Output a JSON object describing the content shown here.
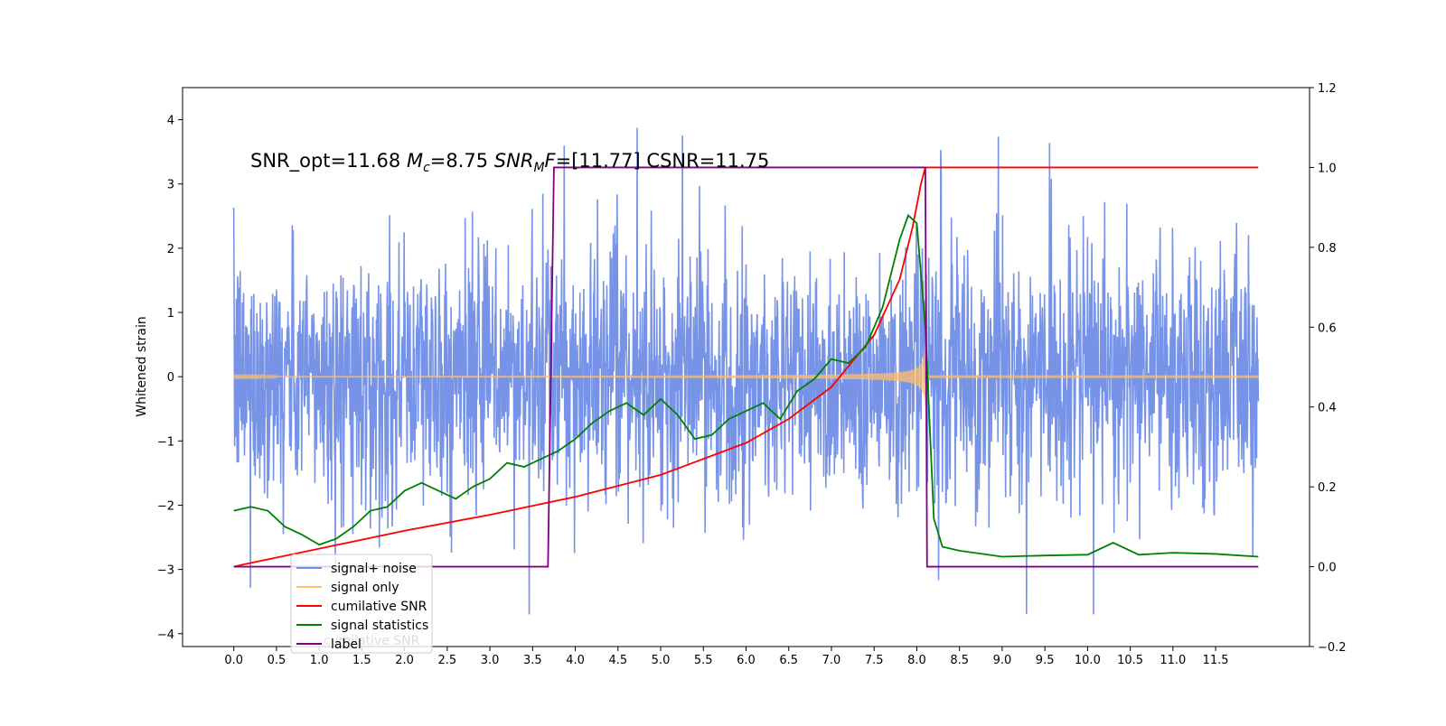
{
  "chart_data": {
    "type": "line",
    "title": "",
    "annotation": {
      "text_a": "SNR_opt=11.68 ",
      "mc_symbol": "M",
      "mc_sub": "c",
      "text_b": "=8.75    ",
      "snr_symbol": "SNR",
      "snr_sub": "M",
      "snr_tail": "F",
      "text_c": "=[11.77] CSNR=11.75"
    },
    "xlabel": "",
    "ylabel": "Whitened strain",
    "y2label": "",
    "xlim": [
      -0.6,
      12.6
    ],
    "ylim": [
      -4.2,
      4.5
    ],
    "y2lim": [
      -0.2,
      1.2
    ],
    "x_ticks": [
      "0.0",
      "0.5",
      "1.0",
      "1.5",
      "2.0",
      "2.5",
      "3.0",
      "3.5",
      "4.0",
      "4.5",
      "5.0",
      "5.5",
      "6.0",
      "6.5",
      "7.0",
      "7.5",
      "8.0",
      "8.5",
      "9.0",
      "9.5",
      "10.0",
      "10.5",
      "11.0",
      "11.5"
    ],
    "y_ticks": [
      4,
      3,
      2,
      1,
      0,
      -1,
      -2,
      -3,
      -4
    ],
    "y_tick_labels": [
      "4",
      "3",
      "2",
      "1",
      "0",
      "−1",
      "−2",
      "−3",
      "−4"
    ],
    "y2_ticks": [
      1.2,
      1.0,
      0.8,
      0.6,
      0.4,
      0.2,
      0.0,
      -0.2
    ],
    "y2_tick_labels": [
      "1.2",
      "1.0",
      "0.8",
      "0.6",
      "0.4",
      "0.2",
      "0.0",
      "−0.2"
    ],
    "legend_position": "lower-left",
    "series": [
      {
        "name": "signal+ noise",
        "color": "#6f8de6",
        "axis": "left",
        "x_range": [
          0,
          12.0
        ],
        "envelope_typical": 1.7,
        "peak_max": 4.1,
        "peak_min": -3.7
      },
      {
        "name": "signal only",
        "color": "#ffbf6b",
        "axis": "left",
        "x_range": [
          0,
          12.0
        ],
        "merger_time": 8.1,
        "peak_amplitude": 1.05
      },
      {
        "name": "cumilative SNR",
        "color": "#ff0000",
        "axis": "right",
        "x": [
          0.0,
          0.1,
          1.0,
          2.0,
          3.0,
          4.0,
          5.0,
          6.0,
          6.5,
          7.0,
          7.5,
          7.8,
          7.95,
          8.05,
          8.1,
          12.0
        ],
        "y": [
          0.0,
          0.005,
          0.045,
          0.09,
          0.13,
          0.175,
          0.23,
          0.31,
          0.37,
          0.45,
          0.58,
          0.72,
          0.85,
          0.96,
          1.0,
          1.0
        ]
      },
      {
        "name": "signal statistics",
        "color": "#008000",
        "axis": "right",
        "x": [
          0.0,
          0.2,
          0.4,
          0.6,
          0.8,
          1.0,
          1.2,
          1.4,
          1.6,
          1.8,
          2.0,
          2.2,
          2.4,
          2.6,
          2.8,
          3.0,
          3.2,
          3.4,
          3.6,
          3.8,
          4.0,
          4.2,
          4.4,
          4.6,
          4.8,
          5.0,
          5.2,
          5.4,
          5.6,
          5.8,
          6.0,
          6.2,
          6.4,
          6.6,
          6.8,
          7.0,
          7.2,
          7.4,
          7.6,
          7.8,
          7.9,
          8.0,
          8.1,
          8.2,
          8.3,
          8.5,
          9.0,
          9.5,
          10.0,
          10.3,
          10.6,
          11.0,
          11.5,
          12.0
        ],
        "y": [
          0.14,
          0.15,
          0.14,
          0.1,
          0.08,
          0.055,
          0.07,
          0.1,
          0.14,
          0.15,
          0.19,
          0.21,
          0.19,
          0.17,
          0.2,
          0.22,
          0.26,
          0.25,
          0.27,
          0.29,
          0.32,
          0.36,
          0.39,
          0.41,
          0.38,
          0.42,
          0.38,
          0.32,
          0.33,
          0.37,
          0.39,
          0.41,
          0.37,
          0.44,
          0.47,
          0.52,
          0.51,
          0.55,
          0.65,
          0.82,
          0.88,
          0.86,
          0.6,
          0.12,
          0.05,
          0.04,
          0.025,
          0.028,
          0.03,
          0.06,
          0.03,
          0.035,
          0.032,
          0.025
        ]
      },
      {
        "name": "label",
        "color": "#800080",
        "axis": "right",
        "x": [
          0.0,
          3.68,
          3.75,
          8.1,
          8.12,
          12.0
        ],
        "y": [
          0.0,
          0.0,
          1.0,
          1.0,
          0.0,
          0.0
        ]
      }
    ],
    "legend_overlap_ghost_text": "cumilative SNR",
    "grid": false
  }
}
